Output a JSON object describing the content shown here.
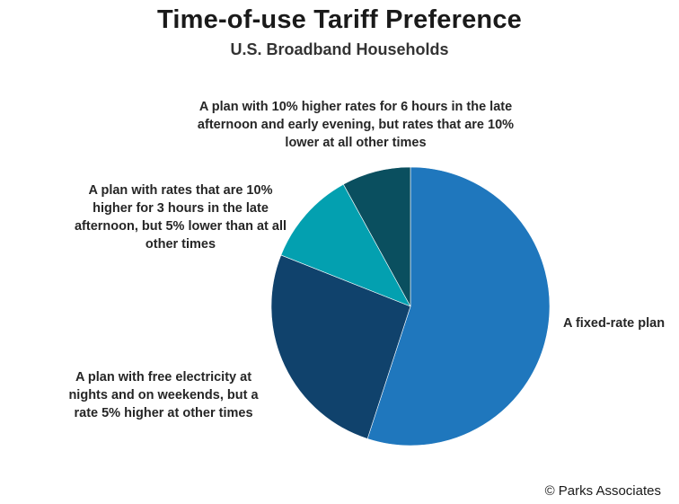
{
  "chart_data": {
    "type": "pie",
    "title": "Time-of-use Tariff Preference",
    "subtitle": "U.S. Broadband Households",
    "slices": [
      {
        "label": "A fixed-rate plan",
        "value": 55,
        "color": "#1f77bd"
      },
      {
        "label": "A plan with free electricity at nights and on weekends, but a rate 5% higher at other times",
        "value": 26,
        "color": "#10426c"
      },
      {
        "label": "A plan with rates that are 10% higher for 3 hours in the late afternoon, but 5% lower than at all other times",
        "value": 11,
        "color": "#03a0b0"
      },
      {
        "label": "A plan with 10% higher rates for 6 hours in the late afternoon and early evening, but rates that are 10% lower at all other times",
        "value": 8,
        "color": "#0a4f5f"
      }
    ]
  },
  "labels": {
    "slice_0": [
      "A fixed-rate plan"
    ],
    "slice_1": [
      "A plan with free electricity at",
      "nights and on weekends, but a",
      "rate 5% higher at other times"
    ],
    "slice_2": [
      "A plan with rates that are 10%",
      "higher for 3 hours in the late",
      "afternoon, but 5% lower than at all",
      "other times"
    ],
    "slice_3": [
      "A plan with 10% higher rates for 6 hours in the late",
      "afternoon and early evening, but rates that are 10%",
      "lower at all other times"
    ]
  },
  "source": "© Parks Associates"
}
